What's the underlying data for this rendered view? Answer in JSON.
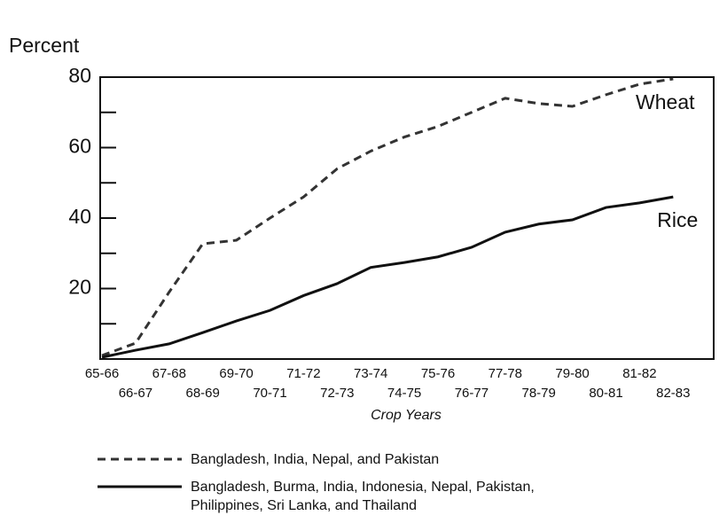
{
  "chart_data": {
    "type": "line",
    "y_label": "Percent",
    "x_label": "Crop Years",
    "categories": [
      "65-66",
      "66-67",
      "67-68",
      "68-69",
      "69-70",
      "70-71",
      "71-72",
      "72-73",
      "73-74",
      "74-75",
      "75-76",
      "76-77",
      "77-78",
      "78-79",
      "79-80",
      "80-81",
      "81-82",
      "82-83"
    ],
    "series": [
      {
        "name": "Bangladesh, India, Nepal, and Pakistan",
        "label": "Wheat",
        "color": "#333333",
        "line_style": "dashed",
        "values": [
          1,
          4.5,
          19,
          32.7,
          33.7,
          40,
          46,
          54,
          59,
          63,
          66,
          70,
          74,
          72.5,
          71.7,
          75,
          78,
          79.5
        ]
      },
      {
        "name": "Bangladesh, Burma, India, Indonesia, Nepal, Pakistan, Philippines, Sri Lanka, and Thailand",
        "label": "Rice",
        "color": "#111111",
        "line_style": "solid",
        "values": [
          0.5,
          2.5,
          4.3,
          7.5,
          10.8,
          13.8,
          18,
          21.4,
          26,
          27.4,
          29,
          31.7,
          36,
          38.3,
          39.5,
          43,
          44.3,
          46
        ]
      }
    ],
    "ylim": [
      0,
      80
    ],
    "yticks": [
      20,
      40,
      60,
      80
    ],
    "yminor_ticks": [
      10,
      30,
      50,
      70
    ],
    "grid": false
  }
}
